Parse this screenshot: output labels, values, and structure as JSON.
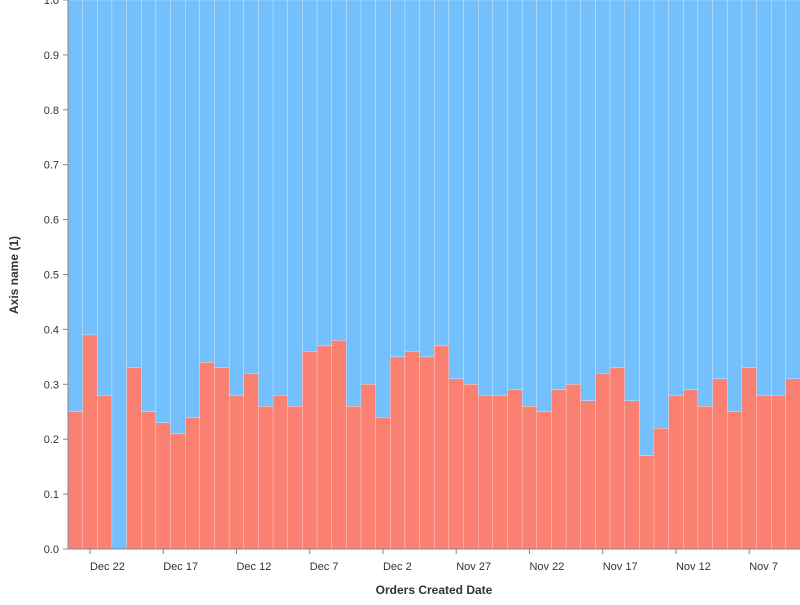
{
  "chart_data": {
    "type": "bar",
    "stacked": "normalized",
    "xlabel": "Orders Created Date",
    "ylabel": "Axis name (1)",
    "ylim": [
      0,
      1
    ],
    "yticks": [
      "0.0",
      "0.1",
      "0.2",
      "0.3",
      "0.4",
      "0.5",
      "0.6",
      "0.7",
      "0.8",
      "0.9",
      "1.0"
    ],
    "x_order": "descending",
    "x_tick_labels": [
      "Dec 22",
      "Dec 17",
      "Dec 12",
      "Dec 7",
      "Dec 2",
      "Nov 27",
      "Nov 22",
      "Nov 17",
      "Nov 12",
      "Nov 7"
    ],
    "x": [
      "Dec 23",
      "Dec 22",
      "Dec 21",
      "Dec 20",
      "Dec 19",
      "Dec 18",
      "Dec 17",
      "Dec 16",
      "Dec 15",
      "Dec 14",
      "Dec 13",
      "Dec 12",
      "Dec 11",
      "Dec 10",
      "Dec 9",
      "Dec 8",
      "Dec 7",
      "Dec 6",
      "Dec 5",
      "Dec 4",
      "Dec 3",
      "Dec 2",
      "Dec 1",
      "Nov 30",
      "Nov 29",
      "Nov 28",
      "Nov 27",
      "Nov 26",
      "Nov 25",
      "Nov 24",
      "Nov 23",
      "Nov 22",
      "Nov 21",
      "Nov 20",
      "Nov 19",
      "Nov 18",
      "Nov 17",
      "Nov 16",
      "Nov 15",
      "Nov 14",
      "Nov 13",
      "Nov 12",
      "Nov 11",
      "Nov 10",
      "Nov 9",
      "Nov 8",
      "Nov 7",
      "Nov 6",
      "Nov 5",
      "Nov 4"
    ],
    "series": [
      {
        "color": "#fa8072",
        "values": [
          0.25,
          0.39,
          0.28,
          0.0,
          0.33,
          0.25,
          0.23,
          0.21,
          0.24,
          0.34,
          0.33,
          0.28,
          0.32,
          0.26,
          0.28,
          0.26,
          0.36,
          0.37,
          0.38,
          0.26,
          0.3,
          0.24,
          0.35,
          0.36,
          0.35,
          0.37,
          0.31,
          0.3,
          0.28,
          0.28,
          0.29,
          0.26,
          0.25,
          0.29,
          0.3,
          0.27,
          0.32,
          0.33,
          0.27,
          0.17,
          0.22,
          0.28,
          0.29,
          0.26,
          0.31,
          0.25,
          0.33,
          0.28,
          0.28,
          0.31
        ]
      },
      {
        "color": "#74c0fc",
        "values": [
          0.75,
          0.61,
          0.72,
          1.0,
          0.67,
          0.75,
          0.77,
          0.79,
          0.76,
          0.66,
          0.67,
          0.72,
          0.68,
          0.74,
          0.72,
          0.74,
          0.64,
          0.63,
          0.62,
          0.74,
          0.7,
          0.76,
          0.65,
          0.64,
          0.65,
          0.63,
          0.69,
          0.7,
          0.72,
          0.72,
          0.71,
          0.74,
          0.75,
          0.71,
          0.7,
          0.73,
          0.68,
          0.67,
          0.73,
          0.83,
          0.78,
          0.72,
          0.71,
          0.74,
          0.69,
          0.75,
          0.67,
          0.72,
          0.72,
          0.69
        ]
      }
    ],
    "grid": false,
    "legend": "none"
  }
}
